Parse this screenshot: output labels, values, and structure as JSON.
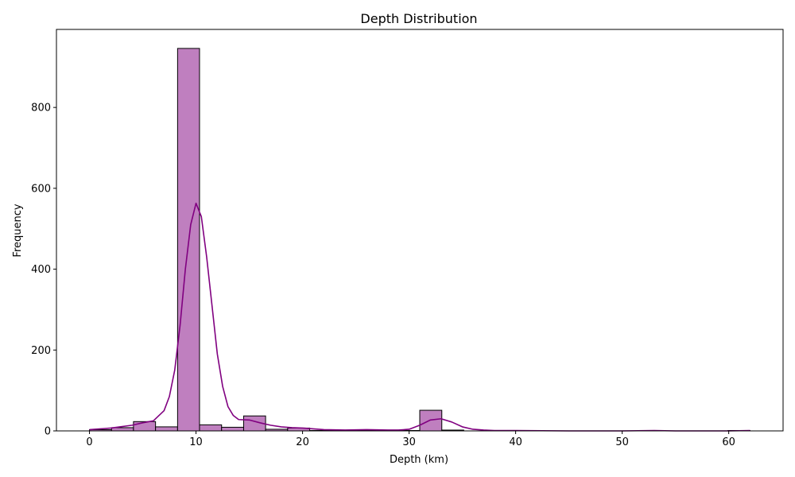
{
  "chart_data": {
    "type": "bar",
    "title": "Depth Distribution",
    "xlabel": "Depth (km)",
    "ylabel": "Frequency",
    "xlim": [
      -3.1,
      65.1
    ],
    "ylim": [
      0,
      993
    ],
    "xticks": [
      0,
      10,
      20,
      30,
      40,
      50,
      60
    ],
    "yticks": [
      0,
      200,
      400,
      600,
      800
    ],
    "bins": [
      {
        "x0": 0.0,
        "x1": 2.07,
        "count": 3
      },
      {
        "x0": 2.07,
        "x1": 4.13,
        "count": 8
      },
      {
        "x0": 4.13,
        "x1": 6.2,
        "count": 23
      },
      {
        "x0": 6.2,
        "x1": 8.27,
        "count": 10
      },
      {
        "x0": 8.27,
        "x1": 10.33,
        "count": 946
      },
      {
        "x0": 10.33,
        "x1": 12.4,
        "count": 15
      },
      {
        "x0": 12.4,
        "x1": 14.47,
        "count": 9
      },
      {
        "x0": 14.47,
        "x1": 16.53,
        "count": 37
      },
      {
        "x0": 16.53,
        "x1": 18.6,
        "count": 4
      },
      {
        "x0": 18.6,
        "x1": 20.67,
        "count": 7
      },
      {
        "x0": 20.67,
        "x1": 22.73,
        "count": 1
      },
      {
        "x0": 22.73,
        "x1": 24.8,
        "count": 1
      },
      {
        "x0": 24.8,
        "x1": 26.87,
        "count": 1
      },
      {
        "x0": 26.87,
        "x1": 28.93,
        "count": 1
      },
      {
        "x0": 28.93,
        "x1": 31.0,
        "count": 1
      },
      {
        "x0": 31.0,
        "x1": 33.07,
        "count": 51
      },
      {
        "x0": 33.07,
        "x1": 35.13,
        "count": 2
      },
      {
        "x0": 35.13,
        "x1": 37.2,
        "count": 0
      },
      {
        "x0": 37.2,
        "x1": 39.27,
        "count": 0
      },
      {
        "x0": 39.27,
        "x1": 41.33,
        "count": 1
      },
      {
        "x0": 41.33,
        "x1": 43.4,
        "count": 0
      },
      {
        "x0": 43.4,
        "x1": 45.47,
        "count": 0
      },
      {
        "x0": 45.47,
        "x1": 47.53,
        "count": 0
      },
      {
        "x0": 47.53,
        "x1": 49.6,
        "count": 0
      },
      {
        "x0": 49.6,
        "x1": 51.67,
        "count": 0
      },
      {
        "x0": 51.67,
        "x1": 53.73,
        "count": 1
      },
      {
        "x0": 53.73,
        "x1": 55.8,
        "count": 0
      },
      {
        "x0": 55.8,
        "x1": 57.87,
        "count": 0
      },
      {
        "x0": 57.87,
        "x1": 59.93,
        "count": 0
      },
      {
        "x0": 59.93,
        "x1": 62.0,
        "count": 1
      }
    ],
    "kde": {
      "x": [
        0,
        2,
        4,
        5,
        6,
        7,
        7.5,
        8,
        8.5,
        9,
        9.5,
        10,
        10.5,
        11,
        11.5,
        12,
        12.5,
        13,
        13.5,
        14,
        15,
        16,
        17,
        18,
        19,
        20,
        21,
        22,
        24,
        26,
        28,
        29,
        30,
        31,
        32,
        33,
        34,
        35,
        36,
        37,
        38,
        40,
        45,
        50,
        53,
        55,
        60,
        62
      ],
      "y": [
        3,
        7,
        14,
        20,
        25,
        50,
        85,
        150,
        260,
        400,
        510,
        563,
        530,
        430,
        310,
        190,
        110,
        60,
        38,
        28,
        27,
        20,
        14,
        10,
        8,
        7,
        5,
        3,
        2,
        3,
        2,
        2,
        4,
        14,
        27,
        30,
        22,
        10,
        4,
        2,
        1,
        1,
        0,
        0,
        1,
        0,
        0,
        1
      ]
    },
    "colors": {
      "bar_fill": "#bf7fbf",
      "bar_edge": "#000000",
      "kde_line": "#800080"
    },
    "grid": false,
    "legend": "none"
  }
}
